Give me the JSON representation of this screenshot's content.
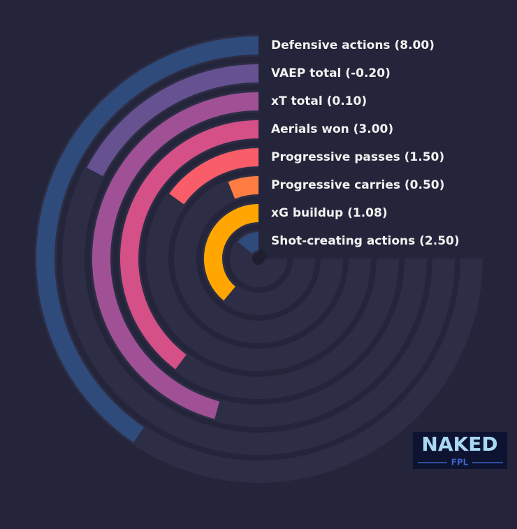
{
  "chart_data": {
    "type": "radial-bar",
    "categories": [
      "Defensive actions (8.00)",
      "VAEP total (-0.20)",
      "xT total (0.10)",
      "Aerials won (3.00)",
      "Progressive passes (1.50)",
      "Progressive carries (0.50)",
      "xG buildup (1.08)",
      "Shot-creating actions (2.50)"
    ],
    "values": [
      54,
      23,
      61,
      53,
      20,
      8,
      52,
      19
    ],
    "colors": [
      "#2f4b7c",
      "#665191",
      "#a05195",
      "#d45087",
      "#f95d6a",
      "#ff7c43",
      "#ffa600",
      "#2f4b7c"
    ],
    "ylim": [
      0,
      100
    ]
  },
  "logo": {
    "text": "NAKED",
    "subtext": "FPL"
  }
}
